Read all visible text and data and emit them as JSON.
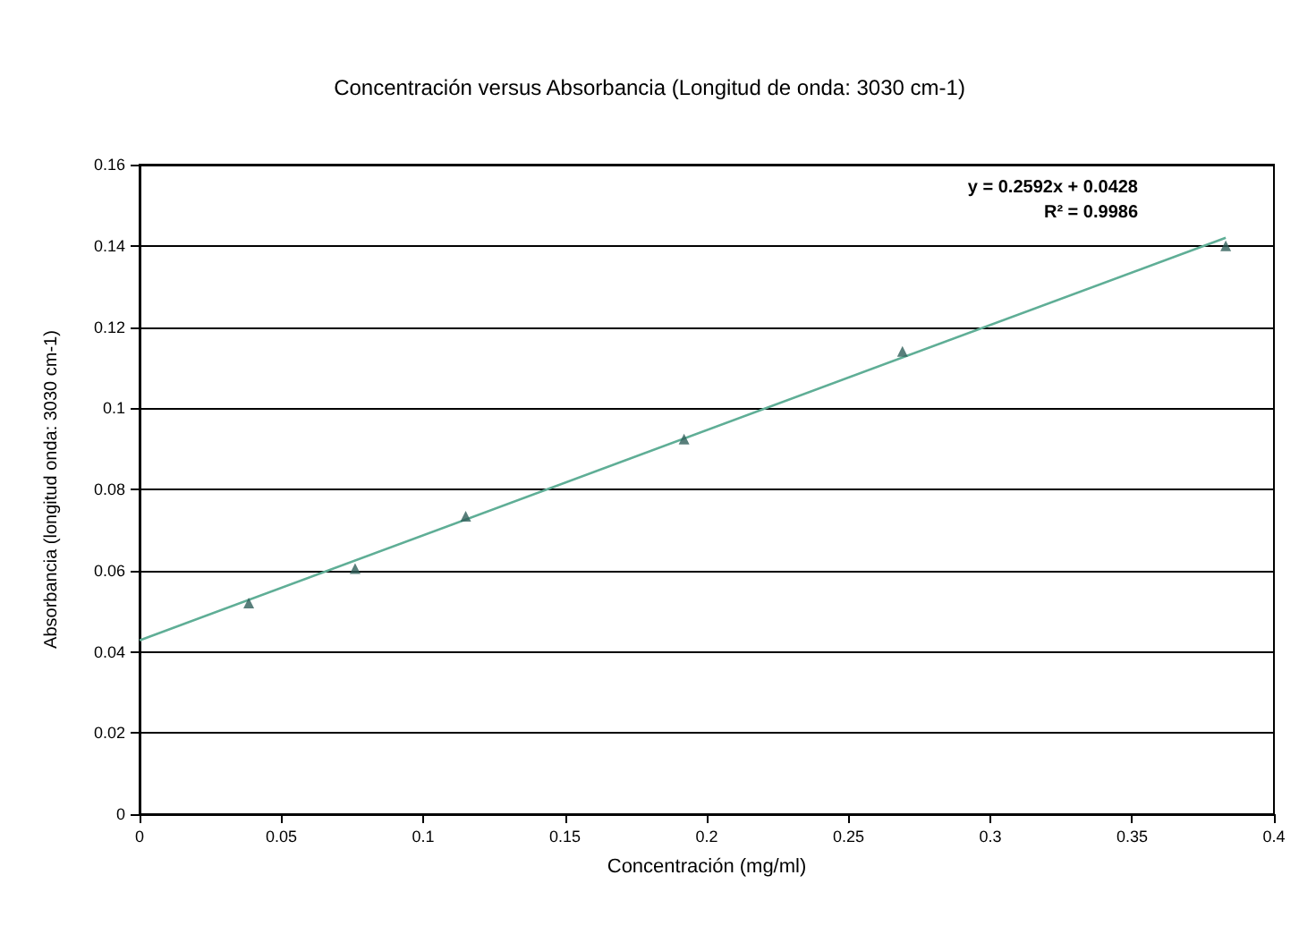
{
  "chart_data": {
    "type": "scatter",
    "title": "Concentración versus Absorbancia (Longitud de onda: 3030 cm-1)",
    "xlabel": "Concentración (mg/ml)",
    "ylabel": "Absorbancia (longitud onda: 3030 cm-1)",
    "series": [
      {
        "color": "#2f5f5a",
        "x": [
          0.0385,
          0.076,
          0.115,
          0.192,
          0.269,
          0.383
        ],
        "values": [
          0.052,
          0.0605,
          0.0734,
          0.0924,
          0.114,
          0.14
        ],
        "marker": "triangle"
      },
      {
        "type": "line",
        "color": "#5fae96",
        "x": [
          0,
          0.383
        ],
        "values": [
          0.0428,
          0.142
        ],
        "marker": "none",
        "line_style": "solid"
      }
    ],
    "annotations": [
      "y = 0.2592x + 0.0428",
      "R² = 0.9986"
    ],
    "xlim": [
      0,
      0.4
    ],
    "xticks": [
      0,
      0.05,
      0.1,
      0.15,
      0.2,
      0.25,
      0.3,
      0.35,
      0.4
    ],
    "ylim": [
      0,
      0.16
    ],
    "yticks": [
      0,
      0.02,
      0.04,
      0.06,
      0.08,
      0.1,
      0.12,
      0.14,
      0.16
    ],
    "grid": "y"
  }
}
